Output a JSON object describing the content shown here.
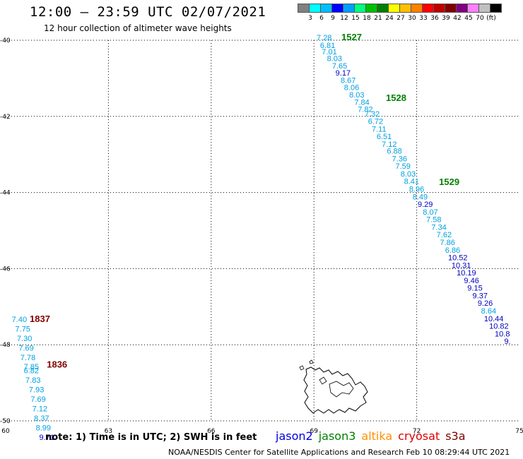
{
  "header": {
    "title": "12:00 — 23:59 UTC 02/07/2021",
    "subtitle": "12 hour collection of altimeter wave heights"
  },
  "color_scale": {
    "colors": [
      "#808080",
      "#00ffff",
      "#00bfff",
      "#0000ff",
      "#00a0ff",
      "#00ff80",
      "#00c000",
      "#008000",
      "#ffff00",
      "#ffc000",
      "#ff8000",
      "#ff0000",
      "#c00000",
      "#800000",
      "#800080",
      "#ff80ff",
      "#c0c0c0",
      "#000000"
    ],
    "labels": [
      "3",
      "6",
      "9",
      "12",
      "15",
      "18",
      "21",
      "24",
      "27",
      "30",
      "33",
      "36",
      "39",
      "42",
      "45",
      "70",
      "(ft)"
    ]
  },
  "map": {
    "x_ticks": [
      "60",
      "63",
      "66",
      "69",
      "72",
      "75"
    ],
    "y_ticks": [
      "-40",
      "-42",
      "-44",
      "-46",
      "-48",
      "-50"
    ]
  },
  "chart_data": {
    "type": "scatter",
    "xlabel": "",
    "ylabel": "",
    "xlim": [
      60,
      75
    ],
    "ylim": [
      -50,
      -40
    ],
    "grid": true,
    "series": [
      {
        "name": "jason3",
        "color": "#00a0e0",
        "points": [
          {
            "lon": 69.3,
            "lat": -40.0,
            "label": "7.28"
          },
          {
            "lon": 69.4,
            "lat": -40.2,
            "label": "6.81"
          },
          {
            "lon": 69.45,
            "lat": -40.37,
            "label": "7.01"
          },
          {
            "lon": 69.6,
            "lat": -40.55,
            "label": "8.03"
          },
          {
            "lon": 69.75,
            "lat": -40.74,
            "label": "7.65"
          },
          {
            "lon": 69.85,
            "lat": -40.93,
            "label": "9.17",
            "color": "#0000c0"
          },
          {
            "lon": 70.0,
            "lat": -41.12,
            "label": "8.67"
          },
          {
            "lon": 70.1,
            "lat": -41.31,
            "label": "8.06"
          },
          {
            "lon": 70.25,
            "lat": -41.5,
            "label": "8.03"
          },
          {
            "lon": 70.4,
            "lat": -41.7,
            "label": "7.84"
          },
          {
            "lon": 70.5,
            "lat": -41.88,
            "label": "7.82"
          },
          {
            "lon": 70.7,
            "lat": -42.0,
            "label": "7.32"
          },
          {
            "lon": 70.8,
            "lat": -42.2,
            "label": "6.72"
          },
          {
            "lon": 70.9,
            "lat": -42.4,
            "label": "7.11"
          },
          {
            "lon": 71.05,
            "lat": -42.6,
            "label": "6.51"
          },
          {
            "lon": 71.2,
            "lat": -42.8,
            "label": "7.12"
          },
          {
            "lon": 71.35,
            "lat": -42.98,
            "label": "6.88"
          },
          {
            "lon": 71.5,
            "lat": -43.18,
            "label": "7.36"
          },
          {
            "lon": 71.6,
            "lat": -43.38,
            "label": "7.59"
          },
          {
            "lon": 71.75,
            "lat": -43.58,
            "label": "8.03"
          },
          {
            "lon": 71.85,
            "lat": -43.78,
            "label": "8.41"
          },
          {
            "lon": 72.0,
            "lat": -43.98,
            "label": "8.96"
          },
          {
            "lon": 72.1,
            "lat": -44.18,
            "label": "8.49"
          },
          {
            "lon": 72.25,
            "lat": -44.38,
            "label": "9.29",
            "color": "#0000c0"
          },
          {
            "lon": 72.4,
            "lat": -44.58,
            "label": "8.07"
          },
          {
            "lon": 72.5,
            "lat": -44.78,
            "label": "7.58"
          },
          {
            "lon": 72.65,
            "lat": -44.98,
            "label": "7.34"
          },
          {
            "lon": 72.8,
            "lat": -45.18,
            "label": "7.62"
          },
          {
            "lon": 72.9,
            "lat": -45.38,
            "label": "7.86"
          },
          {
            "lon": 73.05,
            "lat": -45.58,
            "label": "6.86"
          },
          {
            "lon": 73.2,
            "lat": -45.78,
            "label": "10.52",
            "color": "#0000c0"
          },
          {
            "lon": 73.3,
            "lat": -45.98,
            "label": "10.31",
            "color": "#0000c0"
          },
          {
            "lon": 73.45,
            "lat": -46.18,
            "label": "10.19",
            "color": "#0000c0"
          },
          {
            "lon": 73.6,
            "lat": -46.38,
            "label": "9.46",
            "color": "#0000c0"
          },
          {
            "lon": 73.7,
            "lat": -46.58,
            "label": "9.15",
            "color": "#0000c0"
          },
          {
            "lon": 73.85,
            "lat": -46.78,
            "label": "9.37",
            "color": "#0000c0"
          },
          {
            "lon": 74.0,
            "lat": -46.98,
            "label": "9.26",
            "color": "#0000c0"
          },
          {
            "lon": 74.1,
            "lat": -47.18,
            "label": "8.64"
          },
          {
            "lon": 74.25,
            "lat": -47.38,
            "label": "10.44",
            "color": "#0000c0"
          },
          {
            "lon": 74.4,
            "lat": -47.58,
            "label": "10.82",
            "color": "#0000c0"
          },
          {
            "lon": 74.5,
            "lat": -47.78,
            "label": "10.8",
            "color": "#0000c0"
          },
          {
            "lon": 74.65,
            "lat": -47.98,
            "label": "9.",
            "color": "#0000c0"
          }
        ],
        "time_tags": [
          {
            "lon": 70.1,
            "lat": -40.0,
            "label": "1527"
          },
          {
            "lon": 71.4,
            "lat": -41.6,
            "label": "1528"
          },
          {
            "lon": 72.95,
            "lat": -43.8,
            "label": "1529"
          }
        ]
      },
      {
        "name": "cryosat",
        "color": "#00a0e0",
        "points": [
          {
            "lon": 60.4,
            "lat": -47.4,
            "label": "7.40"
          },
          {
            "lon": 60.5,
            "lat": -47.65,
            "label": "7.75"
          },
          {
            "lon": 60.55,
            "lat": -47.9,
            "label": "7.30"
          },
          {
            "lon": 60.6,
            "lat": -48.15,
            "label": "7.69"
          },
          {
            "lon": 60.65,
            "lat": -48.4,
            "label": "7.78"
          },
          {
            "lon": 60.75,
            "lat": -48.65,
            "label": "7.85"
          },
          {
            "lon": 60.75,
            "lat": -48.75,
            "label": "6.82"
          },
          {
            "lon": 60.8,
            "lat": -49.0,
            "label": "7.83"
          },
          {
            "lon": 60.9,
            "lat": -49.25,
            "label": "7.93"
          },
          {
            "lon": 60.95,
            "lat": -49.5,
            "label": "7.69"
          },
          {
            "lon": 61.0,
            "lat": -49.75,
            "label": "7.12"
          },
          {
            "lon": 61.05,
            "lat": -50.0,
            "label": "8.37"
          },
          {
            "lon": 61.1,
            "lat": -50.25,
            "label": "8.99"
          },
          {
            "lon": 61.2,
            "lat": -50.5,
            "label": "9.71",
            "color": "#0000c0"
          }
        ],
        "time_tags": [
          {
            "lon": 61.0,
            "lat": -47.4,
            "label": "1837"
          },
          {
            "lon": 61.5,
            "lat": -48.6,
            "label": "1836"
          }
        ]
      }
    ]
  },
  "note": "note:  1) Time is in UTC;  2) SWH is in feet",
  "satellites": [
    {
      "name": "jason2",
      "color": "#0000e0"
    },
    {
      "name": "jason3",
      "color": "#008000"
    },
    {
      "name": "altika",
      "color": "#ff9000"
    },
    {
      "name": "cryosat",
      "color": "#e00000"
    },
    {
      "name": "s3a",
      "color": "#800000"
    }
  ],
  "footer": "NOAA/NESDIS Center for Satellite Applications and Research    Feb 10 08:29:44 UTC 2021"
}
